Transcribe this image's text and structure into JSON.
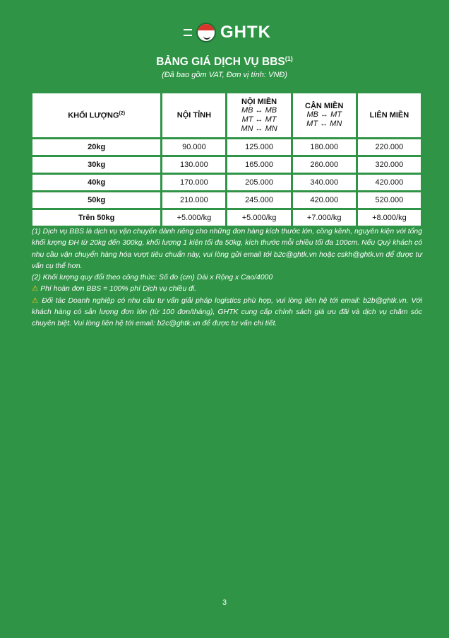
{
  "logo": {
    "text": "GHTK"
  },
  "title": "BẢNG GIÁ DỊCH VỤ BBS",
  "title_sup": "(1)",
  "subtitle": "(Đã bao gồm VAT, Đơn vị tính: VNĐ)",
  "table": {
    "headers": [
      {
        "label": "KHỐI LƯỢNG",
        "sup": "(2)",
        "lines": []
      },
      {
        "label": "NỘI TỈNH",
        "lines": []
      },
      {
        "label": "NỘI MIỀN",
        "lines": [
          "MB ↔ MB",
          "MT ↔ MT",
          "MN ↔ MN"
        ]
      },
      {
        "label": "CẬN MIỀN",
        "lines": [
          "MB ↔ MT",
          "MT ↔ MN"
        ]
      },
      {
        "label": "LIÊN MIỀN",
        "lines": []
      }
    ],
    "rows": [
      [
        "20kg",
        "90.000",
        "125.000",
        "180.000",
        "220.000"
      ],
      [
        "30kg",
        "130.000",
        "165.000",
        "260.000",
        "320.000"
      ],
      [
        "40kg",
        "170.000",
        "205.000",
        "340.000",
        "420.000"
      ],
      [
        "50kg",
        "210.000",
        "245.000",
        "420.000",
        "520.000"
      ],
      [
        "Trên 50kg",
        "+5.000/kg",
        "+5.000/kg",
        "+7.000/kg",
        "+8.000/kg"
      ]
    ]
  },
  "notes": [
    "(1) Dịch vụ BBS là dịch vụ vận chuyển dành riêng cho những đơn hàng kích thước lớn, cồng kềnh, nguyên kiện với tổng khối lượng ĐH từ 20kg đến 300kg, khối lượng 1 kiện tối đa 50kg, kích thước mỗi chiều tối đa 100cm. Nếu Quý khách có nhu cầu vận chuyển hàng hóa vượt tiêu chuẩn này, vui lòng gửi email tới b2c@ghtk.vn hoặc cskh@ghtk.vn để được tư vấn cụ thể hơn.",
    "(2) Khối lượng quy đổi theo công thức: Số đo (cm) Dài x Rộng x Cao/4000"
  ],
  "warnings": [
    "Phí hoàn đơn BBS = 100% phí Dịch vụ chiều đi.",
    "Đối tác Doanh nghiệp có nhu cầu tư vấn giải pháp logistics phù hợp, vui lòng liên hệ tới email: b2b@ghtk.vn. Với khách hàng có sản lượng đơn lớn (từ 100 đơn/tháng), GHTK cung cấp chính sách giá ưu đãi và dịch vụ chăm sóc chuyên biệt. Vui lòng liên hệ tới email: b2c@ghtk.vn để được tư vấn chi tiết."
  ],
  "page_number": "3"
}
